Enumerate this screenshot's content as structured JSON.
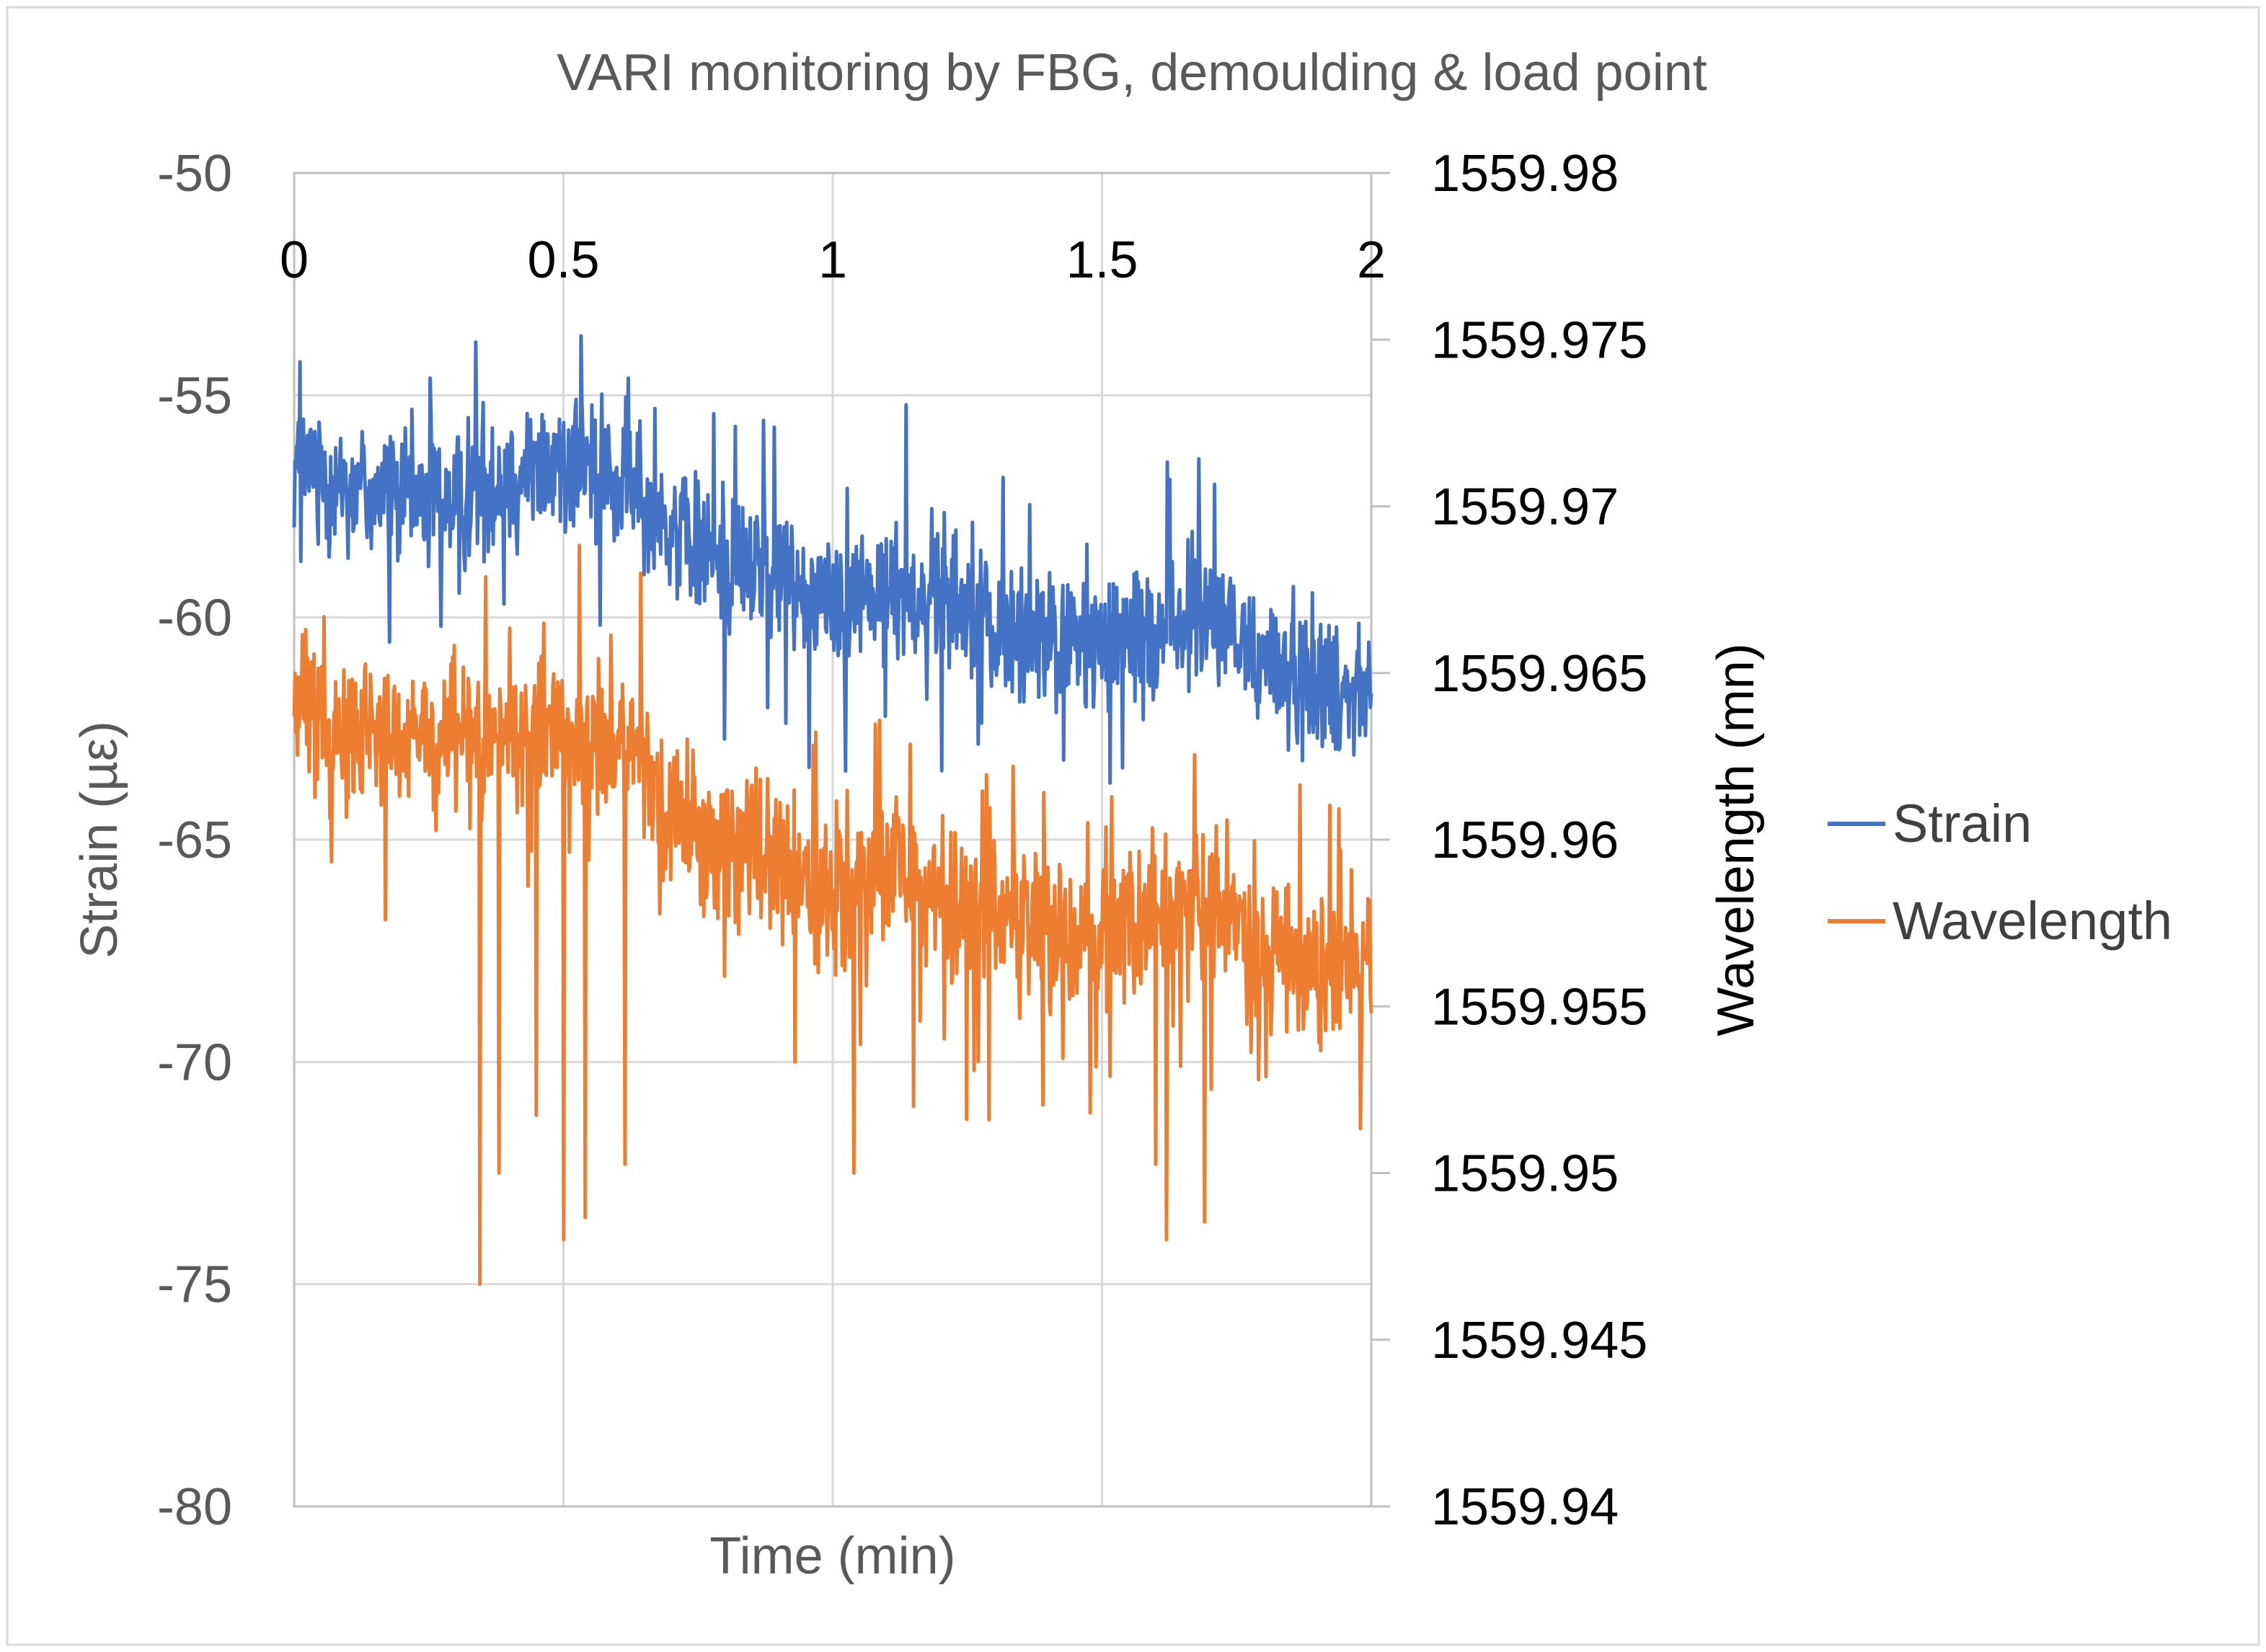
{
  "chart_data": {
    "type": "line",
    "title": "VARI monitoring by FBG, demoulding & load point",
    "xlabel": "Time (min)",
    "ylabel": "Strain (µε)",
    "y2label": "Wavelength (mn)",
    "xlim": [
      0,
      2
    ],
    "ylim": [
      -80,
      -50
    ],
    "y2lim": [
      1559.94,
      1559.98
    ],
    "x_ticks": [
      "0",
      "0.5",
      "1",
      "1.5",
      "2"
    ],
    "y_ticks": [
      "-50",
      "-55",
      "-60",
      "-65",
      "-70",
      "-75",
      "-80"
    ],
    "y2_ticks": [
      "1559.98",
      "1559.975",
      "1559.97",
      "1559.965",
      "1559.96",
      "1559.955",
      "1559.95",
      "1559.945",
      "1559.94"
    ],
    "grid": true,
    "legend_position": "right",
    "series": [
      {
        "name": "Strain",
        "axis": "left",
        "color": "#4472C4",
        "x": [
          0.0,
          0.1,
          0.2,
          0.3,
          0.4,
          0.5,
          0.6,
          0.7,
          0.8,
          0.9,
          1.0,
          1.1,
          1.2,
          1.3,
          1.4,
          1.5,
          1.6,
          1.7,
          1.8,
          1.9,
          2.0
        ],
        "values": [
          -56.5,
          -57.0,
          -57.3,
          -57.3,
          -56.8,
          -56.5,
          -57.0,
          -58.0,
          -58.7,
          -59.0,
          -59.6,
          -59.4,
          -59.4,
          -60.3,
          -60.5,
          -60.7,
          -60.3,
          -60.0,
          -61.0,
          -61.5,
          -61.5
        ],
        "noise_amplitude": 1.5,
        "note": "dense noisy signal (approx. 1300 samples) fluctuating around the listed trend"
      },
      {
        "name": "Wavelength",
        "axis": "left",
        "color": "#ED7D31",
        "x": [
          0.0,
          0.1,
          0.2,
          0.3,
          0.4,
          0.5,
          0.6,
          0.7,
          0.8,
          0.9,
          1.0,
          1.1,
          1.2,
          1.3,
          1.4,
          1.5,
          1.6,
          1.7,
          1.8,
          1.9,
          2.0
        ],
        "values": [
          -62.0,
          -62.5,
          -62.8,
          -62.8,
          -62.5,
          -62.5,
          -63.0,
          -64.3,
          -65.2,
          -65.6,
          -66.3,
          -66.1,
          -66.0,
          -66.8,
          -67.0,
          -67.2,
          -66.6,
          -66.5,
          -67.4,
          -68.0,
          -68.0
        ],
        "noise_amplitude": 1.6,
        "spikes": [
          {
            "x": 0.345,
            "value": -75.0
          },
          {
            "x": 0.38,
            "value": -72.5
          },
          {
            "x": 0.45,
            "value": -71.2
          },
          {
            "x": 0.5,
            "value": -74.0
          },
          {
            "x": 0.54,
            "value": -73.5
          },
          {
            "x": 0.615,
            "value": -72.3
          },
          {
            "x": 0.07,
            "value": -65.5
          },
          {
            "x": 0.17,
            "value": -66.8
          },
          {
            "x": 0.93,
            "value": -70.0
          },
          {
            "x": 1.04,
            "value": -72.5
          },
          {
            "x": 1.15,
            "value": -71.0
          },
          {
            "x": 1.29,
            "value": -71.3
          },
          {
            "x": 1.6,
            "value": -72.3
          },
          {
            "x": 1.62,
            "value": -74.0
          },
          {
            "x": 1.69,
            "value": -73.6
          },
          {
            "x": 1.79,
            "value": -70.4
          },
          {
            "x": 1.98,
            "value": -71.5
          }
        ],
        "note": "dense noisy signal (approx. 1300 samples) around the listed trend, with downward spikes"
      }
    ]
  }
}
